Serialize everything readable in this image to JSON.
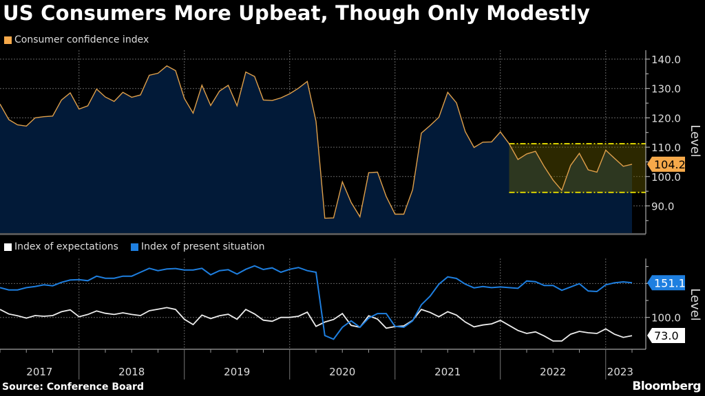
{
  "title": "US Consumers More Upbeat, Though Only Modestly",
  "source": "Source: Conference Board",
  "logo": "Bloomberg",
  "colors": {
    "background": "#000000",
    "cci_line": "#e0a04a",
    "cci_area": "#021a38",
    "band": "#d8d000",
    "expectations": "#ffffff",
    "present": "#1e7fe0",
    "cci_tag": "#f6a94a"
  },
  "chart_data": [
    {
      "type": "area",
      "legend": [
        {
          "label": "Consumer confidence index",
          "color": "#f6a94a"
        }
      ],
      "ylabel": "Level",
      "yticks": [
        "140.0",
        "130.0",
        "120.0",
        "110.0",
        "100.0",
        "90.0"
      ],
      "ytick_values": [
        140,
        130,
        120,
        110,
        100,
        90
      ],
      "ylim": [
        80.4,
        143
      ],
      "grid": true,
      "last_value_label": "104.2",
      "band": {
        "x_start": "2022-02",
        "low": 94.6,
        "high": 111.2,
        "style": "dash-dot yellow lines with shaded range"
      },
      "series": [
        {
          "name": "Consumer confidence index",
          "values": [
            124.7,
            119.4,
            117.6,
            117.2,
            120.0,
            120.4,
            120.6,
            126.1,
            128.5,
            123.0,
            124.1,
            129.8,
            127.1,
            125.6,
            128.7,
            127.0,
            127.8,
            134.5,
            135.2,
            137.7,
            136.1,
            126.6,
            121.6,
            131.1,
            124.2,
            129.1,
            131.1,
            124.1,
            135.6,
            134.1,
            126.1,
            125.9,
            126.8,
            128.2,
            130.1,
            132.4,
            118.8,
            85.8,
            85.9,
            98.2,
            91.2,
            86.3,
            101.3,
            101.5,
            93.2,
            87.2,
            87.2,
            95.5,
            114.8,
            117.4,
            120.2,
            128.7,
            125.1,
            115.3,
            109.9,
            111.7,
            111.8,
            115.2,
            111.2,
            105.8,
            107.7,
            108.6,
            103.4,
            98.8,
            95.3,
            103.8,
            107.9,
            102.3,
            101.5,
            109.0,
            106.2,
            103.5,
            104.2
          ]
        }
      ]
    },
    {
      "type": "line",
      "legend": [
        {
          "label": "Index of expectations",
          "color": "#ffffff"
        },
        {
          "label": "Index of present situation",
          "color": "#1e7fe0"
        }
      ],
      "ylabel": "Level",
      "yticks": [
        "100.0"
      ],
      "ytick_values": [
        100
      ],
      "gridlines": [
        100,
        150
      ],
      "ylim": [
        54,
        185
      ],
      "grid": true,
      "last_value_labels": {
        "expectations": "73.0",
        "present": "151.1"
      },
      "series": [
        {
          "name": "Index of expectations",
          "values": [
            111.8,
            105.1,
            102.4,
            99.0,
            102.7,
            101.7,
            102.7,
            108.4,
            111.1,
            101.0,
            104.4,
            109.5,
            106.1,
            104.4,
            106.8,
            104.4,
            102.7,
            109.8,
            112.2,
            114.5,
            111.8,
            97.3,
            89.5,
            103.4,
            98.3,
            102.4,
            104.7,
            97.3,
            111.8,
            105.1,
            95.9,
            94.3,
            100.0,
            100.0,
            101.7,
            107.8,
            86.8,
            93.2,
            97.0,
            105.7,
            88.2,
            85.5,
            102.4,
            97.6,
            84.1,
            86.5,
            87.5,
            95.6,
            111.8,
            107.4,
            101.0,
            108.4,
            103.4,
            93.2,
            86.1,
            88.9,
            90.5,
            95.6,
            88.2,
            80.7,
            76.4,
            78.7,
            72.6,
            65.2,
            65.2,
            75.3,
            79.4,
            77.4,
            76.4,
            83.1,
            75.3,
            70.6,
            73.0
          ]
        },
        {
          "name": "Index of present situation",
          "values": [
            143.9,
            140.5,
            140.5,
            143.9,
            145.6,
            148.0,
            146.6,
            151.7,
            155.1,
            155.7,
            154.1,
            160.8,
            157.8,
            157.8,
            160.8,
            160.8,
            166.6,
            172.3,
            168.9,
            171.3,
            172.0,
            169.9,
            169.9,
            172.3,
            162.8,
            168.9,
            170.3,
            163.9,
            170.9,
            176.0,
            170.6,
            173.0,
            166.6,
            170.9,
            173.6,
            168.9,
            166.6,
            73.3,
            67.9,
            85.5,
            94.9,
            85.5,
            99.0,
            105.7,
            105.7,
            86.8,
            85.5,
            94.9,
            118.6,
            131.4,
            149.0,
            159.8,
            157.4,
            149.0,
            143.6,
            145.6,
            143.9,
            144.9,
            143.9,
            142.9,
            153.7,
            152.7,
            147.0,
            147.0,
            139.9,
            144.9,
            149.7,
            138.9,
            138.2,
            148.0,
            151.0,
            152.4,
            151.1
          ]
        }
      ]
    }
  ],
  "x_axis": {
    "years": [
      "2017",
      "2018",
      "2019",
      "2020",
      "2021",
      "2022",
      "2023"
    ],
    "x": [
      "2017-04",
      "2017-05",
      "2017-06",
      "2017-07",
      "2017-08",
      "2017-09",
      "2017-10",
      "2017-11",
      "2017-12",
      "2018-01",
      "2018-02",
      "2018-03",
      "2018-04",
      "2018-05",
      "2018-06",
      "2018-07",
      "2018-08",
      "2018-09",
      "2018-10",
      "2018-11",
      "2018-12",
      "2019-01",
      "2019-02",
      "2019-03",
      "2019-04",
      "2019-05",
      "2019-06",
      "2019-07",
      "2019-08",
      "2019-09",
      "2019-10",
      "2019-11",
      "2019-12",
      "2020-01",
      "2020-02",
      "2020-03",
      "2020-04",
      "2020-05",
      "2020-06",
      "2020-07",
      "2020-08",
      "2020-09",
      "2020-10",
      "2020-11",
      "2020-12",
      "2021-01",
      "2021-02",
      "2021-03",
      "2021-04",
      "2021-05",
      "2021-06",
      "2021-07",
      "2021-08",
      "2021-09",
      "2021-10",
      "2021-11",
      "2021-12",
      "2022-01",
      "2022-02",
      "2022-03",
      "2022-04",
      "2022-05",
      "2022-06",
      "2022-07",
      "2022-08",
      "2022-09",
      "2022-10",
      "2022-11",
      "2022-12",
      "2023-01",
      "2023-02",
      "2023-03",
      "2023-04"
    ]
  }
}
